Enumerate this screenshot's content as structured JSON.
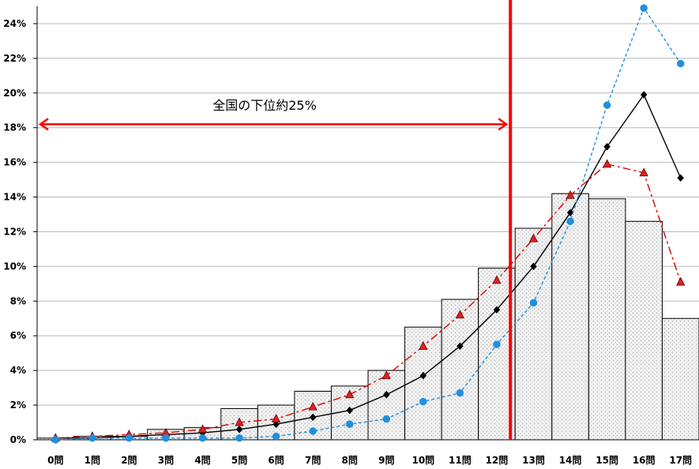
{
  "chart_data": {
    "type": "bar",
    "title": "",
    "xlabel": "",
    "ylabel": "",
    "ylim": [
      0,
      25
    ],
    "y_ticks": [
      "0%",
      "2%",
      "4%",
      "6%",
      "8%",
      "10%",
      "12%",
      "14%",
      "16%",
      "18%",
      "20%",
      "22%",
      "24%"
    ],
    "y_tick_values": [
      0,
      2,
      4,
      6,
      8,
      10,
      12,
      14,
      16,
      18,
      20,
      22,
      24
    ],
    "grid": true,
    "categories": [
      "0問",
      "1問",
      "2問",
      "3問",
      "4問",
      "5問",
      "6問",
      "7問",
      "8問",
      "9問",
      "10問",
      "11問",
      "12問",
      "13問",
      "14問",
      "15問",
      "16問",
      "17問"
    ],
    "series": [
      {
        "type": "bar",
        "values": [
          0.1,
          0.2,
          0.2,
          0.6,
          0.7,
          1.8,
          2.0,
          2.8,
          3.1,
          4.0,
          6.5,
          8.1,
          9.9,
          12.2,
          14.2,
          13.9,
          12.6,
          7.0
        ],
        "color": "#e0e0e0"
      },
      {
        "type": "line",
        "values": [
          0.1,
          0.1,
          0.2,
          0.3,
          0.4,
          0.6,
          0.9,
          1.3,
          1.7,
          2.6,
          3.7,
          5.4,
          7.5,
          10.0,
          13.1,
          16.9,
          19.9,
          15.1
        ],
        "color": "#000000",
        "marker": "diamond",
        "dash": "solid"
      },
      {
        "type": "line",
        "values": [
          0.1,
          0.2,
          0.3,
          0.4,
          0.6,
          1.0,
          1.2,
          1.9,
          2.6,
          3.7,
          5.4,
          7.2,
          9.2,
          11.6,
          14.1,
          15.9,
          15.4,
          9.1
        ],
        "color": "#e00000",
        "marker": "triangle",
        "marker_fill": "#e02020",
        "dash": "dashdot"
      },
      {
        "type": "line",
        "values": [
          0.0,
          0.1,
          0.1,
          0.1,
          0.1,
          0.1,
          0.2,
          0.5,
          0.9,
          1.2,
          2.2,
          2.7,
          5.5,
          7.9,
          12.6,
          19.3,
          24.9,
          21.7
        ],
        "color": "#1e90e0",
        "marker": "circle",
        "dash": "dashed"
      }
    ],
    "reference_line": {
      "after_category_index": 12,
      "color": "#ff0000"
    },
    "annotation": {
      "text": "全国の下位約25%",
      "color": "#ff0000"
    }
  }
}
